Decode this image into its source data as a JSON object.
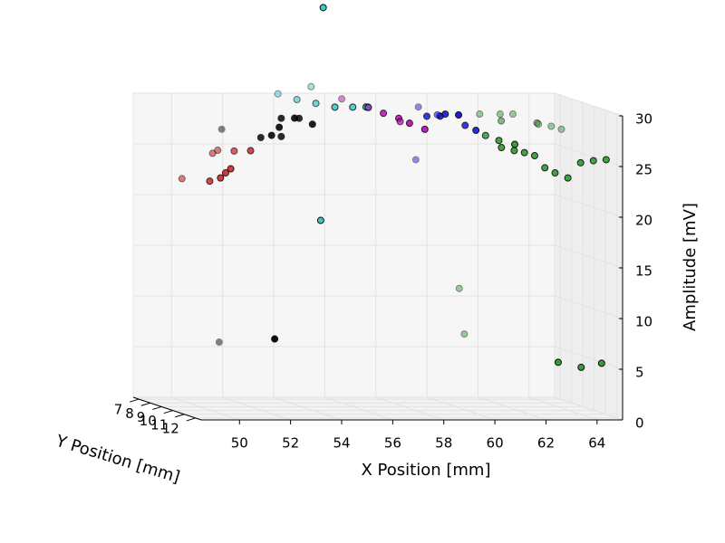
{
  "chart_data": {
    "type": "scatter3d",
    "xlabel": "X Position [mm]",
    "ylabel": "Y Position [mm]",
    "zlabel": "Amplitude [mV]",
    "xlim": [
      48.5,
      65
    ],
    "ylim": [
      6.5,
      12.5
    ],
    "zlim": [
      0,
      30
    ],
    "xticks": [
      50,
      52,
      54,
      56,
      58,
      60,
      62,
      64
    ],
    "yticks": [
      7,
      8,
      9,
      10,
      11,
      12
    ],
    "zticks": [
      0,
      5,
      10,
      15,
      20,
      25,
      30
    ],
    "grid": true,
    "series": [
      {
        "color": "#d62020",
        "x": [
          49.3,
          49.5,
          49.7,
          49.9,
          50.1,
          50.5,
          50.7,
          50.9,
          51.1
        ],
        "y": [
          9,
          11,
          11.5,
          11.5,
          11.5,
          9,
          9,
          10,
          11
        ],
        "z": [
          22.5,
          23,
          23.5,
          24,
          24.4,
          25,
          25.3,
          25.6,
          26
        ]
      },
      {
        "color": "#000000",
        "x": [
          51.3,
          51.5,
          51.7,
          52.0,
          52.3,
          52.6,
          53.0,
          53.3,
          51.6,
          51.2,
          52.3
        ],
        "y": [
          8,
          11,
          11.5,
          11.5,
          11,
          11.5,
          11,
          11.5,
          12,
          8,
          11
        ],
        "z": [
          27,
          27.3,
          27.7,
          28.5,
          29.2,
          29.4,
          29.2,
          28.8,
          7.8,
          6,
          27.4
        ]
      },
      {
        "color": "#30c8c8",
        "x": [
          53.5,
          53.8,
          54.1,
          54.4,
          54.8,
          55.1,
          55.4,
          55.7,
          53.4,
          53.5
        ],
        "y": [
          8,
          9,
          10,
          11,
          8,
          11,
          11.5,
          11,
          12,
          12
        ],
        "z": [
          30.5,
          30.3,
          30.3,
          30.3,
          31.2,
          30.3,
          30.5,
          30.3,
          19.5,
          40.5
        ]
      },
      {
        "color": "#c000c0",
        "x": [
          56.0,
          56.3,
          56.6,
          56.9,
          57.1,
          57.4,
          57.7
        ],
        "y": [
          8,
          11,
          9,
          11,
          11.5,
          10,
          11.5
        ],
        "z": [
          30,
          29.7,
          29.5,
          29.2,
          28.9,
          28.5,
          28.3
        ]
      },
      {
        "color": "#1010e0",
        "x": [
          58.0,
          58.3,
          58.5,
          58.8,
          59.0,
          59.3,
          59.5,
          59.7,
          58.9
        ],
        "y": [
          11,
          11.5,
          11.5,
          12,
          8,
          9,
          11,
          11.5,
          8
        ],
        "z": [
          29.4,
          29.6,
          29.8,
          29.9,
          29.2,
          28.8,
          28.5,
          28.2,
          24
        ]
      },
      {
        "color": "#2a9a2a",
        "x": [
          60.3,
          60.6,
          61.0,
          61.4,
          61.8,
          62.2,
          62.7,
          63.2,
          63.7,
          64.2,
          64.6,
          60.7,
          61.2,
          61.6,
          62.0,
          62.4,
          62.8,
          63.3,
          63.8,
          64.3,
          64.8,
          62.7,
          63.6,
          64.4,
          60.6,
          60.8
        ],
        "y": [
          11,
          11.5,
          12,
          8,
          9,
          8,
          8,
          9,
          8,
          8,
          8,
          11.5,
          11.5,
          11.5,
          11.5,
          11.5,
          11.5,
          11.5,
          11.5,
          11.5,
          11.5,
          12,
          12,
          12,
          8,
          8
        ],
        "z": [
          27.5,
          27.2,
          27,
          28.5,
          28.2,
          28.5,
          28.5,
          28,
          27.5,
          27.3,
          27,
          26.5,
          26.2,
          26,
          25.7,
          24.5,
          24,
          23.5,
          25,
          25.2,
          25.3,
          5.5,
          5,
          5.4,
          11.3,
          6.8
        ]
      }
    ]
  }
}
